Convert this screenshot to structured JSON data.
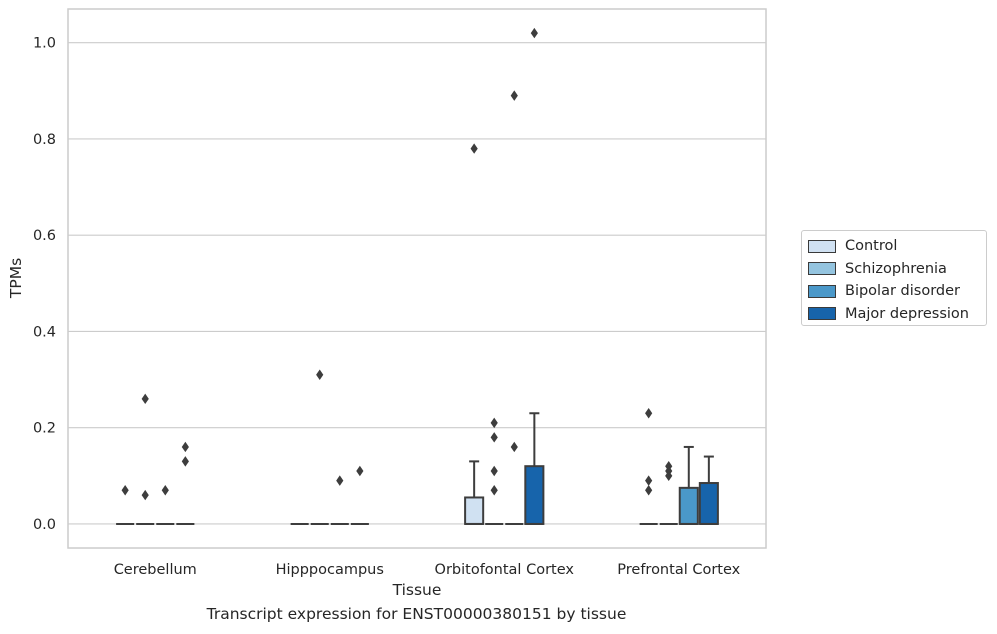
{
  "chart_data": {
    "type": "box",
    "xlabel": "Tissue",
    "ylabel": "TPMs",
    "caption": "Transcript expression for ENST00000380151 by tissue",
    "ylim": [
      -0.05,
      1.07
    ],
    "yticks": [
      "0.0",
      "0.2",
      "0.4",
      "0.6",
      "0.8",
      "1.0"
    ],
    "grid": "horizontal",
    "legend_position": "right",
    "categories": [
      "Cerebellum",
      "Hipppocampus",
      "Orbitofontal Cortex",
      "Prefrontal Cortex"
    ],
    "series": [
      {
        "name": "Control",
        "color": "#d0e1f2"
      },
      {
        "name": "Schizophrenia",
        "color": "#94c4df"
      },
      {
        "name": "Bipolar disorder",
        "color": "#4a98c9"
      },
      {
        "name": "Major depression",
        "color": "#1764ab"
      }
    ],
    "boxes": [
      {
        "category": 0,
        "series": 0,
        "q1": 0,
        "median": 0,
        "q3": 0,
        "whisker_low": 0,
        "whisker_high": 0,
        "outliers": [
          0.07
        ]
      },
      {
        "category": 0,
        "series": 1,
        "q1": 0,
        "median": 0,
        "q3": 0,
        "whisker_low": 0,
        "whisker_high": 0,
        "outliers": [
          0.26,
          0.06
        ]
      },
      {
        "category": 0,
        "series": 2,
        "q1": 0,
        "median": 0,
        "q3": 0,
        "whisker_low": 0,
        "whisker_high": 0,
        "outliers": [
          0.07
        ]
      },
      {
        "category": 0,
        "series": 3,
        "q1": 0,
        "median": 0,
        "q3": 0,
        "whisker_low": 0,
        "whisker_high": 0,
        "outliers": [
          0.16,
          0.13
        ]
      },
      {
        "category": 1,
        "series": 0,
        "q1": 0,
        "median": 0,
        "q3": 0,
        "whisker_low": 0,
        "whisker_high": 0,
        "outliers": []
      },
      {
        "category": 1,
        "series": 1,
        "q1": 0,
        "median": 0,
        "q3": 0,
        "whisker_low": 0,
        "whisker_high": 0,
        "outliers": [
          0.31
        ]
      },
      {
        "category": 1,
        "series": 2,
        "q1": 0,
        "median": 0,
        "q3": 0,
        "whisker_low": 0,
        "whisker_high": 0,
        "outliers": [
          0.09
        ]
      },
      {
        "category": 1,
        "series": 3,
        "q1": 0,
        "median": 0,
        "q3": 0,
        "whisker_low": 0,
        "whisker_high": 0,
        "outliers": [
          0.11
        ]
      },
      {
        "category": 2,
        "series": 0,
        "q1": 0,
        "median": 0,
        "q3": 0.055,
        "whisker_low": 0,
        "whisker_high": 0.13,
        "outliers": [
          0.78
        ]
      },
      {
        "category": 2,
        "series": 1,
        "q1": 0,
        "median": 0,
        "q3": 0,
        "whisker_low": 0,
        "whisker_high": 0,
        "outliers": [
          0.21,
          0.18,
          0.11,
          0.07
        ]
      },
      {
        "category": 2,
        "series": 2,
        "q1": 0,
        "median": 0,
        "q3": 0,
        "whisker_low": 0,
        "whisker_high": 0,
        "outliers": [
          0.89,
          0.16
        ]
      },
      {
        "category": 2,
        "series": 3,
        "q1": 0,
        "median": 0,
        "q3": 0.12,
        "whisker_low": 0,
        "whisker_high": 0.23,
        "outliers": [
          1.02
        ]
      },
      {
        "category": 3,
        "series": 0,
        "q1": 0,
        "median": 0,
        "q3": 0,
        "whisker_low": 0,
        "whisker_high": 0,
        "outliers": [
          0.23,
          0.09,
          0.07
        ]
      },
      {
        "category": 3,
        "series": 1,
        "q1": 0,
        "median": 0,
        "q3": 0,
        "whisker_low": 0,
        "whisker_high": 0,
        "outliers": [
          0.12,
          0.11,
          0.1
        ]
      },
      {
        "category": 3,
        "series": 2,
        "q1": 0,
        "median": 0,
        "q3": 0.075,
        "whisker_low": 0,
        "whisker_high": 0.16,
        "outliers": []
      },
      {
        "category": 3,
        "series": 3,
        "q1": 0,
        "median": 0,
        "q3": 0.085,
        "whisker_low": 0,
        "whisker_high": 0.14,
        "outliers": []
      }
    ]
  }
}
